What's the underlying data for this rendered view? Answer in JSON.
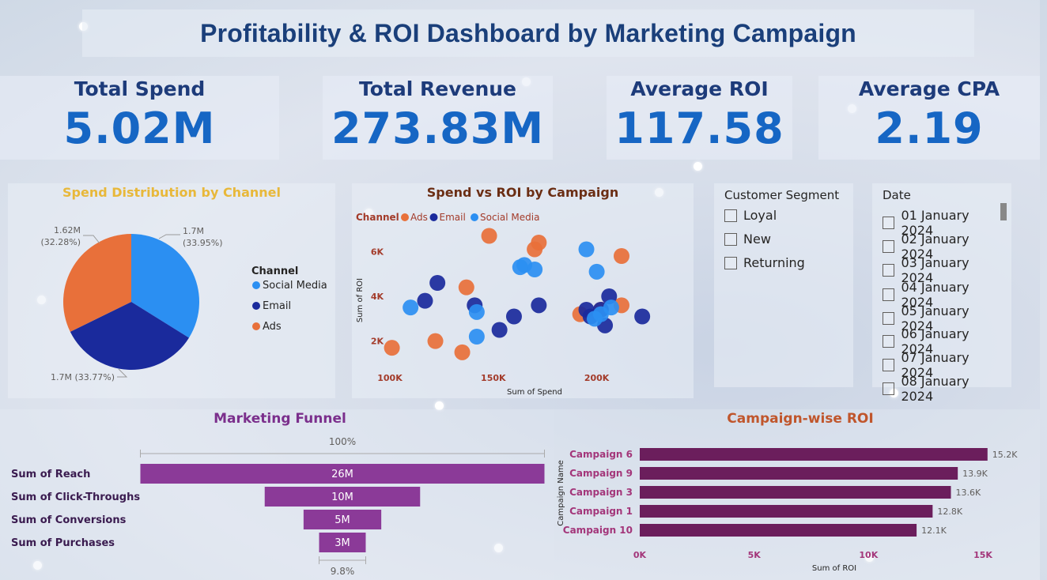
{
  "title": "Profitability & ROI Dashboard by Marketing Campaign",
  "kpis": {
    "spend": {
      "label": "Total Spend",
      "value": "5.02M"
    },
    "revenue": {
      "label": "Total Revenue",
      "value": "273.83M"
    },
    "roi": {
      "label": "Average ROI",
      "value": "117.58"
    },
    "cpa": {
      "label": "Average CPA",
      "value": "2.19"
    }
  },
  "slicers": {
    "segment": {
      "title": "Customer Segment",
      "items": [
        "Loyal",
        "New",
        "Returning"
      ]
    },
    "date": {
      "title": "Date",
      "items": [
        "01 January 2024",
        "02 January 2024",
        "03 January 2024",
        "04 January 2024",
        "05 January 2024",
        "06 January 2024",
        "07 January 2024",
        "08 January 2024"
      ]
    }
  },
  "colors": {
    "social": "#2b8ff2",
    "email": "#1a2a9c",
    "ads": "#e8703a",
    "funnel": "#8b3a98",
    "roi_bar": "#6b1e5c",
    "title": "#1a3f7a",
    "kpi_value": "#1666c4"
  },
  "chart_data": [
    {
      "type": "pie",
      "title": "Spend Distribution by Channel",
      "legend_title": "Channel",
      "legend_placement": "right",
      "slices": [
        {
          "name": "Social Media",
          "value": 1.7,
          "label": "1.7M",
          "pct": "(33.95%)",
          "color": "#2b8ff2"
        },
        {
          "name": "Email",
          "value": 1.7,
          "label": "1.7M (33.77%)",
          "pct": "33.77%",
          "color": "#1a2a9c"
        },
        {
          "name": "Ads",
          "value": 1.62,
          "label": "1.62M",
          "pct": "(32.28%)",
          "color": "#e8703a"
        }
      ]
    },
    {
      "type": "scatter",
      "title": "Spend vs ROI by Campaign",
      "legend_title": "Channel",
      "legend": [
        "Ads",
        "Email",
        "Social Media"
      ],
      "xlabel": "Sum of Spend",
      "ylabel": "Sum of ROI",
      "xticks": [
        "100K",
        "150K",
        "200K"
      ],
      "yticks": [
        "2K",
        "4K",
        "6K"
      ],
      "xlim": [
        100000,
        225000
      ],
      "ylim": [
        1000,
        7000
      ],
      "series": [
        {
          "name": "Ads",
          "color": "#e8703a",
          "points": [
            [
              101000,
              1700
            ],
            [
              122000,
              2000
            ],
            [
              135000,
              1500
            ],
            [
              137000,
              4400
            ],
            [
              148000,
              6700
            ],
            [
              170000,
              6100
            ],
            [
              172000,
              6400
            ],
            [
              192000,
              3200
            ],
            [
              202000,
              3400
            ],
            [
              212000,
              5800
            ],
            [
              212000,
              3600
            ]
          ]
        },
        {
          "name": "Email",
          "color": "#1a2a9c",
          "points": [
            [
              117000,
              3800
            ],
            [
              123000,
              4600
            ],
            [
              141000,
              3600
            ],
            [
              153000,
              2500
            ],
            [
              160000,
              3100
            ],
            [
              172000,
              3600
            ],
            [
              195000,
              3400
            ],
            [
              197000,
              3100
            ],
            [
              202000,
              3400
            ],
            [
              204000,
              2700
            ],
            [
              206000,
              4000
            ],
            [
              222000,
              3100
            ]
          ]
        },
        {
          "name": "Social Media",
          "color": "#2b8ff2",
          "points": [
            [
              110000,
              3500
            ],
            [
              142000,
              3300
            ],
            [
              142000,
              2200
            ],
            [
              163000,
              5300
            ],
            [
              165000,
              5400
            ],
            [
              170000,
              5200
            ],
            [
              195000,
              6100
            ],
            [
              200000,
              5100
            ],
            [
              199000,
              3000
            ],
            [
              202000,
              3200
            ],
            [
              207000,
              3500
            ]
          ]
        }
      ]
    },
    {
      "type": "bar",
      "title": "Marketing Funnel",
      "categories": [
        "Sum of Reach",
        "Sum of Click-Throughs",
        "Sum of Conversions",
        "Sum of Purchases"
      ],
      "values": [
        26,
        10,
        5,
        3
      ],
      "value_labels": [
        "26M",
        "10M",
        "5M",
        "3M"
      ],
      "top_pct": "100%",
      "bottom_pct": "9.8%"
    },
    {
      "type": "bar",
      "title": "Campaign-wise ROI",
      "categories": [
        "Campaign 6",
        "Campaign 9",
        "Campaign 3",
        "Campaign 1",
        "Campaign 10"
      ],
      "values": [
        15200,
        13900,
        13600,
        12800,
        12100
      ],
      "value_labels": [
        "15.2K",
        "13.9K",
        "13.6K",
        "12.8K",
        "12.1K"
      ],
      "xticks": [
        "0K",
        "5K",
        "10K",
        "15K"
      ],
      "xlim": [
        0,
        15000
      ],
      "xlabel": "Sum of ROI",
      "ylabel": "Campaign Name"
    }
  ]
}
